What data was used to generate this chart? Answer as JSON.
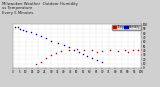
{
  "title_line1": "Milwaukee Weather  Outdoor Humidity",
  "title_line2": "vs Temperature",
  "title_line3": "Every 5 Minutes",
  "title_fontsize": 2.8,
  "background_color": "#d0d0d0",
  "plot_bg_color": "#ffffff",
  "blue_x": [
    2,
    4,
    6,
    8,
    10,
    14,
    18,
    22,
    26,
    30,
    35,
    40,
    44,
    48,
    52,
    55,
    58,
    62,
    66,
    70
  ],
  "blue_y": [
    95,
    93,
    90,
    87,
    85,
    82,
    78,
    73,
    68,
    62,
    57,
    52,
    47,
    42,
    37,
    32,
    27,
    22,
    18,
    14
  ],
  "red_x": [
    18,
    22,
    26,
    30,
    34,
    38,
    44,
    50,
    56,
    62,
    66,
    70,
    76,
    82,
    88,
    90,
    94,
    98
  ],
  "red_y": [
    8,
    14,
    22,
    30,
    34,
    38,
    42,
    44,
    40,
    42,
    36,
    38,
    40,
    38,
    40,
    36,
    42,
    40
  ],
  "xlim": [
    0,
    100
  ],
  "ylim": [
    0,
    100
  ],
  "marker_size": 1.2,
  "blue_color": "#0000cc",
  "red_color": "#cc0000",
  "legend_red_label": "Temp",
  "legend_blue_label": "Humidity",
  "grid_color": "#bbbbbb",
  "tick_fontsize": 2.0,
  "xticks": [
    0,
    5,
    10,
    15,
    20,
    25,
    30,
    35,
    40,
    45,
    50,
    55,
    60,
    65,
    70,
    75,
    80,
    85,
    90,
    95,
    100
  ],
  "yticks": [
    0,
    10,
    20,
    30,
    40,
    50,
    60,
    70,
    80,
    90,
    100
  ],
  "ylabel_right": true
}
